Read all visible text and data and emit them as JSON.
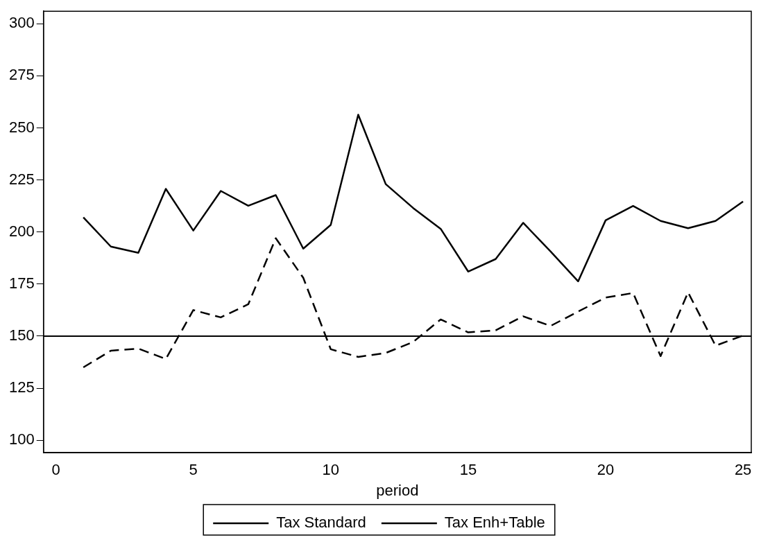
{
  "chart_data": {
    "type": "line",
    "xlabel": "period",
    "x": [
      1,
      2,
      3,
      4,
      5,
      6,
      7,
      8,
      9,
      10,
      11,
      12,
      13,
      14,
      15,
      16,
      17,
      18,
      19,
      20,
      21,
      22,
      23,
      24,
      25
    ],
    "series": [
      {
        "name": "Tax Standard",
        "color": "#000000",
        "line_style": "solid",
        "values": [
          207,
          193,
          190,
          220.7,
          200.7,
          219.7,
          212.6,
          217.7,
          192,
          203.4,
          256.3,
          223,
          211.5,
          201.5,
          181,
          187,
          204.4,
          190.6,
          176.3,
          205.6,
          212.5,
          205.3,
          201.8,
          205.3,
          214.6
        ]
      },
      {
        "name": "Tax Enh+Table",
        "color": "#000000",
        "line_style": "dashed",
        "values": [
          135,
          143,
          144,
          139,
          162.5,
          159,
          165.3,
          197,
          178,
          143.7,
          140,
          141.9,
          147.2,
          158,
          151.8,
          152.8,
          159.5,
          154.9,
          161.8,
          168.5,
          170.7,
          140.4,
          171,
          145.4,
          150.3
        ]
      }
    ],
    "xlim": [
      -0.45,
      25.3
    ],
    "xticks": [
      0,
      5,
      10,
      15,
      20,
      25
    ],
    "ylim": [
      94,
      306
    ],
    "yticks": [
      100,
      125,
      150,
      175,
      200,
      225,
      250,
      275,
      300
    ],
    "ref_lines": [
      {
        "axis": "y",
        "value": 150,
        "color": "#000000"
      }
    ],
    "grid": false,
    "legend": "bottom",
    "marker": "none"
  }
}
